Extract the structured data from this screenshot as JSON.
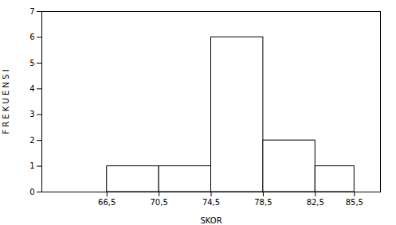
{
  "chart_data": {
    "type": "histogram",
    "bins": [
      66.5,
      70.5,
      74.5,
      78.5,
      82.5,
      85.5
    ],
    "values": [
      1,
      1,
      6,
      2,
      1
    ],
    "color": "#ffffff",
    "xlabel": "SKOR",
    "ylabel": "F R E K U E N S I",
    "xlim": [
      61.5,
      87.5
    ],
    "ylim": [
      0,
      7
    ],
    "yticks": [
      0,
      1,
      2,
      3,
      4,
      5,
      6,
      7
    ],
    "xticks": [
      {
        "value": 66.5,
        "label": "66,5"
      },
      {
        "value": 70.5,
        "label": "70,5"
      },
      {
        "value": 74.5,
        "label": "74,5"
      },
      {
        "value": 78.5,
        "label": "78,5"
      },
      {
        "value": 82.5,
        "label": "82,5"
      },
      {
        "value": 85.5,
        "label": "85,5"
      }
    ],
    "grid": false
  }
}
